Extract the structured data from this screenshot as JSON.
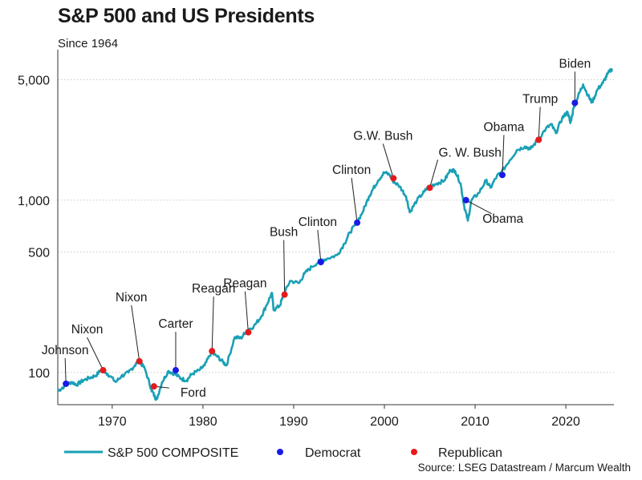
{
  "chart_data": {
    "type": "line",
    "title": "S&P 500 and US Presidents",
    "subtitle": "Since 1964",
    "source": "Source: LSEG Datastream / Marcum Wealth",
    "yscale": "log",
    "ylim": [
      65,
      6500
    ],
    "xlim": [
      1964,
      2025.3
    ],
    "yticks": [
      100,
      500,
      1000,
      5000
    ],
    "ytick_labels": [
      "100",
      "500",
      "1,000",
      "5,000"
    ],
    "xticks": [
      1970,
      1980,
      1990,
      2000,
      2010,
      2020
    ],
    "xtick_labels": [
      "1970",
      "1980",
      "1990",
      "2000",
      "2010",
      "2020"
    ],
    "series": [
      {
        "name": "S&P 500 COMPOSITE",
        "color": "#1aa0b5",
        "x": [
          1964.0,
          1964.7,
          1965.5,
          1966.1,
          1966.8,
          1967.5,
          1968.2,
          1968.9,
          1969.5,
          1970.4,
          1971.0,
          1971.8,
          1972.5,
          1972.9,
          1973.6,
          1974.3,
          1974.7,
          1974.9,
          1975.5,
          1976.2,
          1976.9,
          1977.6,
          1978.2,
          1978.8,
          1979.6,
          1980.2,
          1980.9,
          1981.5,
          1982.2,
          1982.6,
          1983.5,
          1984.2,
          1984.8,
          1985.6,
          1986.4,
          1987.0,
          1987.6,
          1987.8,
          1988.5,
          1988.8,
          1989.6,
          1990.6,
          1991.2,
          1992.0,
          1992.9,
          1993.8,
          1994.8,
          1995.6,
          1996.2,
          1996.8,
          1997.6,
          1998.3,
          1998.7,
          1999.3,
          2000.0,
          2000.6,
          2000.9,
          2001.7,
          2002.4,
          2002.8,
          2003.6,
          2004.4,
          2004.9,
          2005.8,
          2006.6,
          2007.3,
          2007.8,
          2008.4,
          2008.8,
          2009.2,
          2009.6,
          2010.4,
          2011.2,
          2011.7,
          2012.4,
          2012.9,
          2013.8,
          2014.6,
          2015.5,
          2016.1,
          2016.9,
          2017.8,
          2018.4,
          2018.9,
          2019.6,
          2020.2,
          2020.5,
          2020.9,
          2021.5,
          2021.9,
          2022.6,
          2022.9,
          2023.5,
          2024.1,
          2024.6,
          2025.1
        ],
        "values": [
          78,
          83,
          88,
          85,
          90,
          93,
          96,
          105,
          98,
          88,
          95,
          100,
          110,
          118,
          105,
          80,
          72,
          70,
          88,
          102,
          98,
          92,
          90,
          98,
          103,
          110,
          130,
          125,
          115,
          110,
          160,
          158,
          175,
          185,
          210,
          245,
          290,
          230,
          245,
          275,
          340,
          330,
          375,
          410,
          445,
          460,
          480,
          560,
          650,
          720,
          850,
          1050,
          1150,
          1300,
          1450,
          1400,
          1300,
          1200,
          1050,
          850,
          1000,
          1120,
          1200,
          1250,
          1300,
          1500,
          1480,
          1250,
          920,
          760,
          1000,
          1100,
          1300,
          1180,
          1380,
          1450,
          1700,
          1950,
          2050,
          1980,
          2230,
          2600,
          2750,
          2450,
          3000,
          3250,
          2800,
          3500,
          4200,
          4700,
          3900,
          3700,
          4400,
          4800,
          5400,
          5800
        ]
      }
    ],
    "legend": [
      {
        "label": "S&P 500 COMPOSITE",
        "kind": "line",
        "color": "#1aa0b5"
      },
      {
        "label": "Democrat",
        "kind": "dot",
        "color": "#1a1ae6"
      },
      {
        "label": "Republican",
        "kind": "dot",
        "color": "#e61a1a"
      }
    ],
    "presidents": [
      {
        "name": "Johnson",
        "year": 1964.9,
        "value": 86,
        "party": "Democrat"
      },
      {
        "name": "Nixon",
        "year": 1969.0,
        "value": 103,
        "party": "Republican"
      },
      {
        "name": "Nixon",
        "year": 1973.0,
        "value": 116,
        "party": "Republican"
      },
      {
        "name": "Ford",
        "year": 1974.6,
        "value": 83,
        "party": "Republican"
      },
      {
        "name": "Carter",
        "year": 1977.0,
        "value": 103,
        "party": "Democrat"
      },
      {
        "name": "Reagan",
        "year": 1981.0,
        "value": 133,
        "party": "Republican"
      },
      {
        "name": "Reagan",
        "year": 1985.0,
        "value": 171,
        "party": "Republican"
      },
      {
        "name": "Bush",
        "year": 1989.0,
        "value": 283,
        "party": "Republican"
      },
      {
        "name": "Clinton",
        "year": 1993.0,
        "value": 437,
        "party": "Democrat"
      },
      {
        "name": "Clinton",
        "year": 1997.0,
        "value": 740,
        "party": "Democrat"
      },
      {
        "name": "G.W. Bush",
        "year": 2001.0,
        "value": 1340,
        "party": "Republican"
      },
      {
        "name": "G. W. Bush",
        "year": 2005.0,
        "value": 1180,
        "party": "Republican"
      },
      {
        "name": "Obama",
        "year": 2009.0,
        "value": 1000,
        "party": "Democrat"
      },
      {
        "name": "Obama",
        "year": 2013.0,
        "value": 1400,
        "party": "Democrat"
      },
      {
        "name": "Trump",
        "year": 2017.0,
        "value": 2240,
        "party": "Republican"
      },
      {
        "name": "Biden",
        "year": 2021.0,
        "value": 3670,
        "party": "Democrat"
      }
    ]
  }
}
